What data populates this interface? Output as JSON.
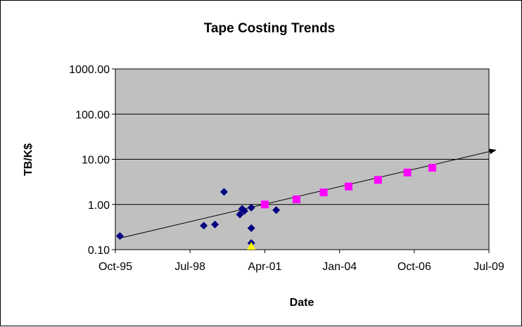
{
  "chart_data": {
    "type": "scatter",
    "title": "Tape Costing Trends",
    "xlabel": "Date",
    "ylabel": "TB/K$",
    "y_scale": "log",
    "ylim": [
      0.1,
      1000
    ],
    "y_ticks": [
      0.1,
      1,
      10,
      100,
      1000
    ],
    "y_tick_labels": [
      "0.10",
      "1.00",
      "10.00",
      "100.00",
      "1000.00"
    ],
    "xlim": [
      "1995-10-01",
      "2009-07-01"
    ],
    "x_ticks": [
      "1995-10-01",
      "1998-07-01",
      "2001-04-01",
      "2004-01-01",
      "2006-10-01",
      "2009-07-01"
    ],
    "x_tick_labels": [
      "Oct-95",
      "Jul-98",
      "Apr-01",
      "Jan-04",
      "Oct-06",
      "Jul-09"
    ],
    "grid": {
      "horizontal": true,
      "vertical": false
    },
    "plot_background": "#c0c0c0",
    "legend": "none",
    "series": [
      {
        "marker": "diamond",
        "color": "#000080",
        "points": [
          {
            "x": "1995-12-01",
            "y": 0.2
          },
          {
            "x": "1999-01-01",
            "y": 0.34
          },
          {
            "x": "1999-06-01",
            "y": 0.36
          },
          {
            "x": "1999-10-01",
            "y": 1.9
          },
          {
            "x": "2000-05-01",
            "y": 0.6
          },
          {
            "x": "2000-06-01",
            "y": 0.8
          },
          {
            "x": "2000-07-01",
            "y": 0.72
          },
          {
            "x": "2000-10-01",
            "y": 0.85
          },
          {
            "x": "2000-10-01",
            "y": 0.3
          },
          {
            "x": "2000-10-01",
            "y": 0.14
          },
          {
            "x": "2001-09-01",
            "y": 0.75
          }
        ]
      },
      {
        "marker": "triangle",
        "color": "#ffff00",
        "points": [
          {
            "x": "2000-10-01",
            "y": 0.12
          }
        ]
      },
      {
        "marker": "square",
        "color": "#ff00ff",
        "points": [
          {
            "x": "2001-04-01",
            "y": 1.0
          },
          {
            "x": "2002-06-01",
            "y": 1.3
          },
          {
            "x": "2003-06-01",
            "y": 1.85
          },
          {
            "x": "2004-05-01",
            "y": 2.5
          },
          {
            "x": "2005-06-01",
            "y": 3.5
          },
          {
            "x": "2006-07-01",
            "y": 5.1
          },
          {
            "x": "2007-06-01",
            "y": 6.5
          }
        ]
      }
    ],
    "trendline": {
      "type": "exponential",
      "color": "#000000",
      "arrow": true,
      "start": {
        "x": "1995-12-01",
        "y": 0.18
      },
      "end": {
        "x": "2009-10-01",
        "y": 16
      }
    }
  }
}
